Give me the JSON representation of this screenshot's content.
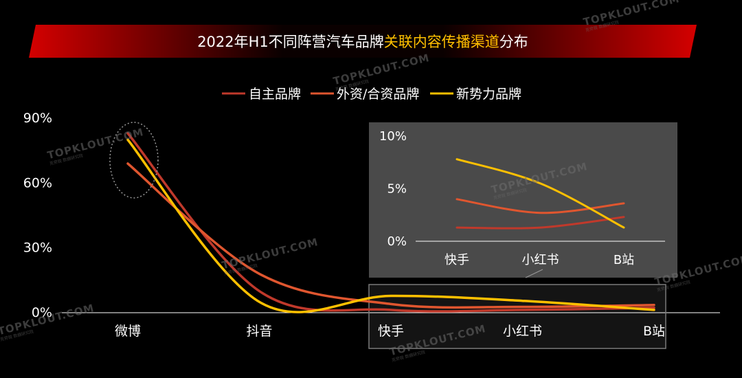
{
  "banner": {
    "title_prefix": "2022年H1不同阵营汽车品牌",
    "title_highlight": "关联内容传播渠道",
    "title_suffix": "分布"
  },
  "colors": {
    "banner_red": "#c00000",
    "highlight": "#ffc000",
    "series_1": "#c0392b",
    "series_2": "#e0562f",
    "series_3": "#ffc000",
    "inset_bg": "#4a4a4a"
  },
  "watermark": {
    "text": "TOPKLOUT.COM",
    "subtext": "克劳锐 数据研究院"
  },
  "chart_data": [
    {
      "type": "line",
      "smooth": true,
      "categories": [
        "微博",
        "抖音",
        "快手",
        "小红书",
        "B站"
      ],
      "ylim": [
        0,
        90
      ],
      "yticks": [
        0,
        30,
        60,
        90
      ],
      "ytick_labels": [
        "0%",
        "30%",
        "60%",
        "90%"
      ],
      "legend": "top-center",
      "series": [
        {
          "name": "自主品牌",
          "values": [
            83,
            10,
            1.3,
            1.3,
            2.3
          ]
        },
        {
          "name": "外资/合资品牌",
          "values": [
            69,
            18,
            4,
            2.7,
            3.6
          ]
        },
        {
          "name": "新势力品牌",
          "values": [
            80,
            5,
            7.8,
            5.5,
            1.3
          ]
        }
      ]
    },
    {
      "type": "line",
      "smooth": true,
      "categories": [
        "快手",
        "小红书",
        "B站"
      ],
      "ylim": [
        0,
        10
      ],
      "yticks": [
        0,
        5,
        10
      ],
      "ytick_labels": [
        "0%",
        "5%",
        "10%"
      ],
      "series": [
        {
          "name": "自主品牌",
          "values": [
            1.3,
            1.3,
            2.3
          ]
        },
        {
          "name": "外资/合资品牌",
          "values": [
            4,
            2.7,
            3.6
          ]
        },
        {
          "name": "新势力品牌",
          "values": [
            7.8,
            5.5,
            1.3
          ]
        }
      ]
    }
  ]
}
